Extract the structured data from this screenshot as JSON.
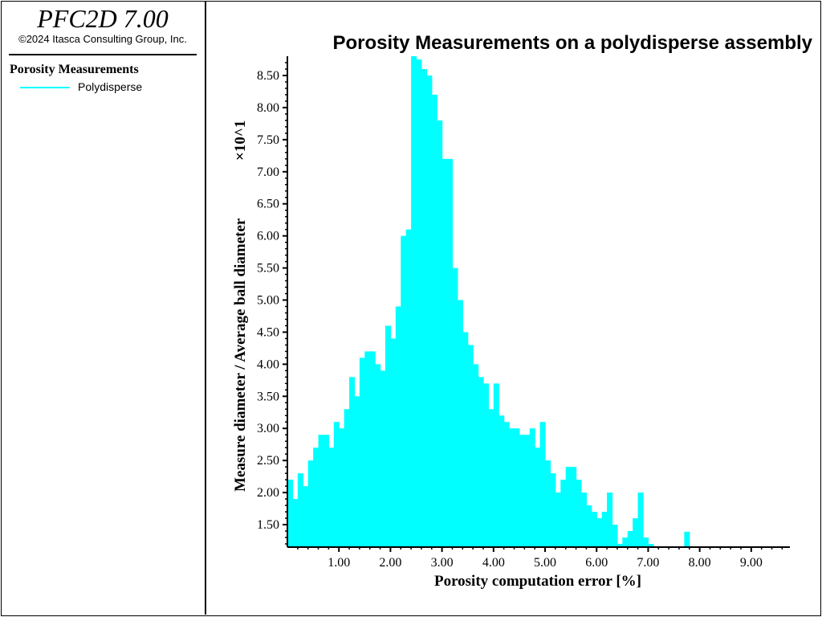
{
  "app": {
    "title": "PFC2D 7.00",
    "copyright": "©2024 Itasca Consulting Group, Inc."
  },
  "legend": {
    "heading": "Porosity Measurements",
    "items": [
      {
        "label": "Polydisperse",
        "color": "#00ffff"
      }
    ]
  },
  "chart_data": {
    "type": "area",
    "title": "Porosity Measurements on a polydisperse assembly",
    "xlabel": "Porosity computation error [%]",
    "ylabel": "Measure diameter / Average ball diameter",
    "y_multiplier": "×10^1",
    "xlim": [
      0,
      9.75
    ],
    "ylim": [
      11.5,
      88
    ],
    "x_ticks": [
      "1.00",
      "2.00",
      "3.00",
      "4.00",
      "5.00",
      "6.00",
      "7.00",
      "8.00",
      "9.00"
    ],
    "y_ticks": [
      "1.50",
      "2.00",
      "2.50",
      "3.00",
      "3.50",
      "4.00",
      "4.50",
      "5.00",
      "5.50",
      "6.00",
      "6.50",
      "7.00",
      "7.50",
      "8.00",
      "8.50"
    ],
    "grid": false,
    "legend_position": "left-panel",
    "series": [
      {
        "name": "Polydisperse",
        "color": "#00ffff",
        "x": [
          0.0,
          0.1,
          0.2,
          0.3,
          0.4,
          0.5,
          0.6,
          0.7,
          0.8,
          0.9,
          1.0,
          1.1,
          1.2,
          1.3,
          1.4,
          1.5,
          1.6,
          1.7,
          1.8,
          1.9,
          2.0,
          2.1,
          2.2,
          2.3,
          2.4,
          2.5,
          2.6,
          2.7,
          2.8,
          2.9,
          3.0,
          3.1,
          3.2,
          3.3,
          3.4,
          3.5,
          3.6,
          3.7,
          3.8,
          3.9,
          4.0,
          4.1,
          4.2,
          4.3,
          4.4,
          4.5,
          4.6,
          4.7,
          4.8,
          4.9,
          5.0,
          5.1,
          5.2,
          5.3,
          5.4,
          5.5,
          5.6,
          5.7,
          5.8,
          5.9,
          6.0,
          6.1,
          6.2,
          6.3,
          6.4,
          6.5,
          6.6,
          6.7,
          6.8,
          6.9,
          7.0,
          7.1,
          7.2,
          7.3,
          7.4,
          7.5,
          7.6,
          7.7,
          7.8
        ],
        "y": [
          22,
          19,
          23,
          21,
          25,
          27,
          29,
          29,
          27,
          31,
          30,
          33,
          38,
          35,
          41,
          42,
          42,
          40,
          39,
          46,
          44,
          49,
          60,
          61,
          88,
          87.5,
          86,
          85,
          82,
          78,
          72,
          72,
          55,
          50,
          45,
          43,
          40,
          38,
          37,
          33,
          37,
          32,
          31,
          30,
          30,
          29,
          29,
          30,
          27,
          31,
          25,
          23,
          20,
          22,
          24,
          24,
          22,
          20,
          18,
          17,
          16,
          17,
          20,
          15,
          12,
          13,
          14,
          16,
          20,
          13,
          12,
          11.5,
          11.5,
          11.5,
          11.5,
          11.5,
          11.5,
          13.9,
          11.5
        ]
      }
    ]
  }
}
